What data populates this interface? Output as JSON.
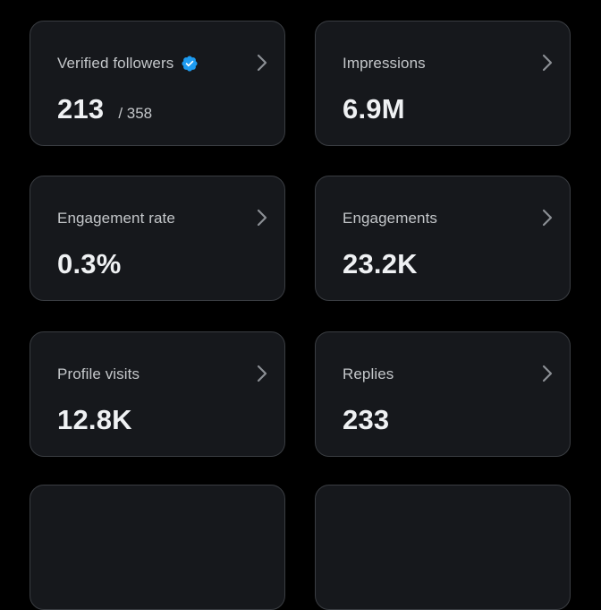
{
  "cards": [
    {
      "label": "Verified followers",
      "value": "213",
      "secondary": "/ 358",
      "verified": true
    },
    {
      "label": "Impressions",
      "value": "6.9M"
    },
    {
      "label": "Engagement rate",
      "value": "0.3%"
    },
    {
      "label": "Engagements",
      "value": "23.2K"
    },
    {
      "label": "Profile visits",
      "value": "12.8K"
    },
    {
      "label": "Replies",
      "value": "233"
    }
  ],
  "colors": {
    "background": "#000000",
    "card_background": "#16181c",
    "card_border": "#3a3d42",
    "verified_badge": "#1d9bf0",
    "label_text": "#c4c7ca",
    "value_text": "#eff1f3",
    "chevron": "#8b8f94"
  },
  "icons": {
    "verified": "verified-badge-icon",
    "chevron": "chevron-right-icon"
  }
}
